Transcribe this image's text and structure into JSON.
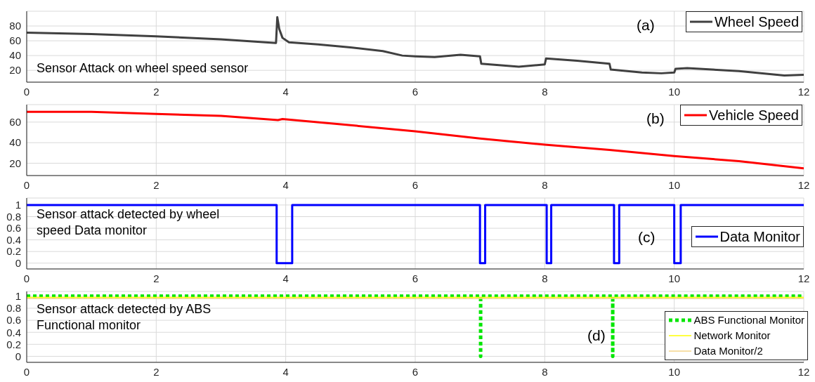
{
  "chart_data": [
    {
      "type": "line",
      "annotations": [
        "(a)",
        "Sensor Attack on wheel speed sensor"
      ],
      "xlim": [
        0,
        12
      ],
      "xticks": [
        0,
        2,
        4,
        6,
        8,
        10,
        12
      ],
      "ylim": [
        4,
        100
      ],
      "yticks": [
        20,
        40,
        60,
        80
      ],
      "grid": true,
      "legend": "top right",
      "marker": "none",
      "series": [
        {
          "name": "Wheel Speed",
          "color": "#404040",
          "line_style": "solid",
          "x": [
            0,
            1,
            2,
            3,
            3.85,
            3.87,
            3.9,
            3.95,
            4.05,
            4.5,
            5,
            5.5,
            5.8,
            6,
            6.3,
            6.7,
            7,
            7.02,
            7.6,
            8,
            8.02,
            8.5,
            9,
            9.02,
            9.5,
            9.8,
            10,
            10.02,
            10.2,
            11,
            11.7,
            12
          ],
          "values": [
            71,
            69,
            66,
            62,
            57,
            92,
            76,
            64,
            58,
            55,
            51,
            46,
            40,
            39,
            38,
            41,
            39,
            29,
            25,
            28,
            36,
            33,
            29,
            21,
            17,
            16,
            17,
            22,
            23,
            19,
            13,
            14
          ]
        }
      ]
    },
    {
      "type": "line",
      "annotations": [
        "(b)"
      ],
      "xlim": [
        0,
        12
      ],
      "xticks": [
        0,
        2,
        4,
        6,
        8,
        10,
        12
      ],
      "ylim": [
        8,
        77
      ],
      "yticks": [
        20,
        40,
        60
      ],
      "grid": true,
      "legend": "top right",
      "marker": "none",
      "series": [
        {
          "name": "Vehicle Speed",
          "color": "#ff0000",
          "line_style": "solid",
          "x": [
            0,
            1,
            2,
            3,
            3.88,
            3.95,
            5,
            6,
            7,
            8,
            9,
            10,
            11,
            12
          ],
          "values": [
            70,
            70,
            68,
            66,
            62,
            63,
            57,
            51,
            44,
            38,
            33,
            27,
            22,
            15
          ]
        }
      ]
    },
    {
      "type": "line",
      "annotations": [
        "(c)",
        "Sensor attack detected by wheel speed Data monitor"
      ],
      "xlim": [
        0,
        12
      ],
      "xticks": [
        0,
        2,
        4,
        6,
        8,
        10,
        12
      ],
      "ylim": [
        -0.1,
        1.12
      ],
      "yticks": [
        0,
        0.2,
        0.4,
        0.6,
        0.8,
        1
      ],
      "grid": true,
      "legend": "right",
      "marker": "none",
      "series": [
        {
          "name": "Data Monitor",
          "color": "#0000ff",
          "line_style": "solid",
          "x": [
            0,
            3.86,
            3.86,
            4.1,
            4.1,
            7,
            7,
            7.08,
            7.08,
            8.03,
            8.03,
            8.1,
            8.1,
            9.07,
            9.07,
            9.15,
            9.15,
            10,
            10,
            10.1,
            10.1,
            12
          ],
          "values": [
            1,
            1,
            0,
            0,
            1,
            1,
            0,
            0,
            1,
            1,
            0,
            0,
            1,
            1,
            0,
            0,
            1,
            1,
            0,
            0,
            1,
            1
          ]
        }
      ]
    },
    {
      "type": "line",
      "annotations": [
        "(d)",
        "Sensor attack detected by ABS Functional monitor"
      ],
      "xlim": [
        0,
        12
      ],
      "xticks": [
        0,
        2,
        4,
        6,
        8,
        10,
        12
      ],
      "ylim": [
        -0.1,
        1.08
      ],
      "yticks": [
        0,
        0.2,
        0.4,
        0.6,
        0.8,
        1
      ],
      "grid": true,
      "legend": "bottom right",
      "marker": "none",
      "series": [
        {
          "name": "ABS Functional Monitor",
          "color": "#00e600",
          "line_style": "dotted",
          "x": [
            0,
            7.01,
            7.01,
            7.01,
            9.05,
            9.05,
            9.05,
            12
          ],
          "values": [
            1,
            1,
            0,
            1,
            1,
            0,
            1,
            1
          ]
        },
        {
          "name": "Network Monitor",
          "color": "#ffff00",
          "line_style": "solid",
          "x": [
            0,
            12
          ],
          "values": [
            0.98,
            0.98
          ]
        },
        {
          "name": "Data Monitor/2",
          "color": "#f5d58a",
          "line_style": "solid",
          "x": [
            0,
            12
          ],
          "values": [
            0.96,
            0.96
          ]
        }
      ]
    }
  ]
}
